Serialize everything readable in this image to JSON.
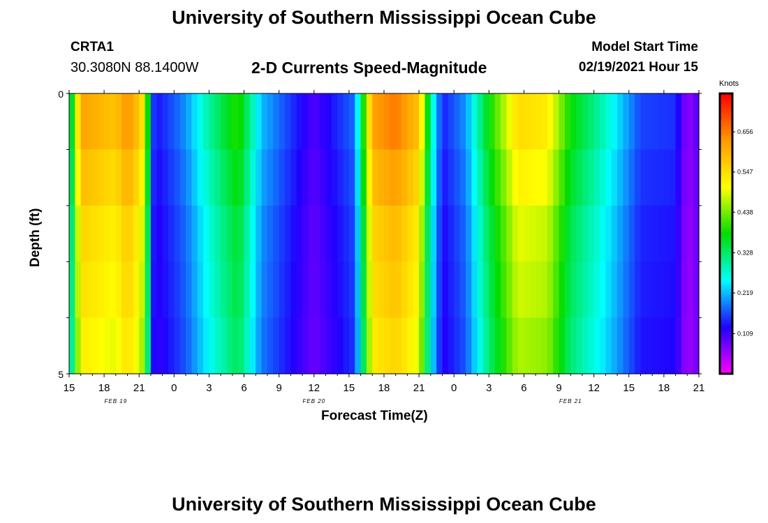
{
  "header": {
    "title": "University of Southern Mississippi Ocean Cube",
    "station_id": "CRTA1",
    "coordinates": "30.3080N 88.1400W",
    "chart_title": "2-D Currents Speed-Magnitude",
    "model_start_label": "Model Start Time",
    "model_start_value": "02/19/2021 Hour 15"
  },
  "footer": {
    "title": "University of Southern Mississippi Ocean Cube"
  },
  "colorbar": {
    "units": "Knots",
    "ticks": [
      "0.656",
      "0.547",
      "0.438",
      "0.328",
      "0.219",
      "0.109"
    ],
    "tick_values": [
      0.656,
      0.547,
      0.438,
      0.328,
      0.219,
      0.109
    ],
    "range": [
      0.0,
      0.76
    ],
    "colors": [
      "#ff00ff",
      "#2000ff",
      "#00ffff",
      "#00dd00",
      "#ffff00",
      "#ff9900",
      "#ff0000"
    ]
  },
  "chart_data": {
    "type": "heatmap",
    "title": "2-D Currents Speed-Magnitude",
    "xlabel": "Forecast Time(Z)",
    "ylabel": "Depth (ft)",
    "y_ticks": [
      "0",
      "5"
    ],
    "y_range": [
      0,
      5
    ],
    "x_tick_labels": [
      "15",
      "18",
      "21",
      "0",
      "3",
      "6",
      "9",
      "12",
      "15",
      "18",
      "21",
      "0",
      "3",
      "6",
      "9",
      "12",
      "15",
      "18",
      "21"
    ],
    "date_labels": [
      {
        "label": "FEB 19",
        "hour_index": 4
      },
      {
        "label": "FEB 20",
        "hour_index": 21
      },
      {
        "label": "FEB 21",
        "hour_index": 43
      }
    ],
    "hours_start": 0,
    "hours_end": 54,
    "depth_levels": 5,
    "speed_knots_keyframes": [
      {
        "hour": 0,
        "speed": 0.27
      },
      {
        "hour": 0.5,
        "speed": 0.45
      },
      {
        "hour": 1,
        "speed": 0.62
      },
      {
        "hour": 4,
        "speed": 0.58
      },
      {
        "hour": 5,
        "speed": 0.64
      },
      {
        "hour": 6.2,
        "speed": 0.56
      },
      {
        "hour": 6.7,
        "speed": 0.4
      },
      {
        "hour": 7.3,
        "speed": 0.13
      },
      {
        "hour": 9,
        "speed": 0.17
      },
      {
        "hour": 10,
        "speed": 0.2
      },
      {
        "hour": 12,
        "speed": 0.3
      },
      {
        "hour": 14.5,
        "speed": 0.4
      },
      {
        "hour": 16.5,
        "speed": 0.22
      },
      {
        "hour": 21,
        "speed": 0.1
      },
      {
        "hour": 24.5,
        "speed": 0.18
      },
      {
        "hour": 25,
        "speed": 0.32
      },
      {
        "hour": 26,
        "speed": 0.62
      },
      {
        "hour": 28,
        "speed": 0.66
      },
      {
        "hour": 30,
        "speed": 0.58
      },
      {
        "hour": 31,
        "speed": 0.3
      },
      {
        "hour": 32,
        "speed": 0.14
      },
      {
        "hour": 34,
        "speed": 0.2
      },
      {
        "hour": 36,
        "speed": 0.38
      },
      {
        "hour": 38.5,
        "speed": 0.55
      },
      {
        "hour": 41,
        "speed": 0.53
      },
      {
        "hour": 43,
        "speed": 0.38
      },
      {
        "hour": 46,
        "speed": 0.28
      },
      {
        "hour": 49,
        "speed": 0.16
      },
      {
        "hour": 52,
        "speed": 0.15
      },
      {
        "hour": 53,
        "speed": 0.06
      },
      {
        "hour": 54,
        "speed": 0.1
      }
    ],
    "depth_factors": [
      1.0,
      0.95,
      0.9,
      0.88,
      0.85
    ]
  }
}
